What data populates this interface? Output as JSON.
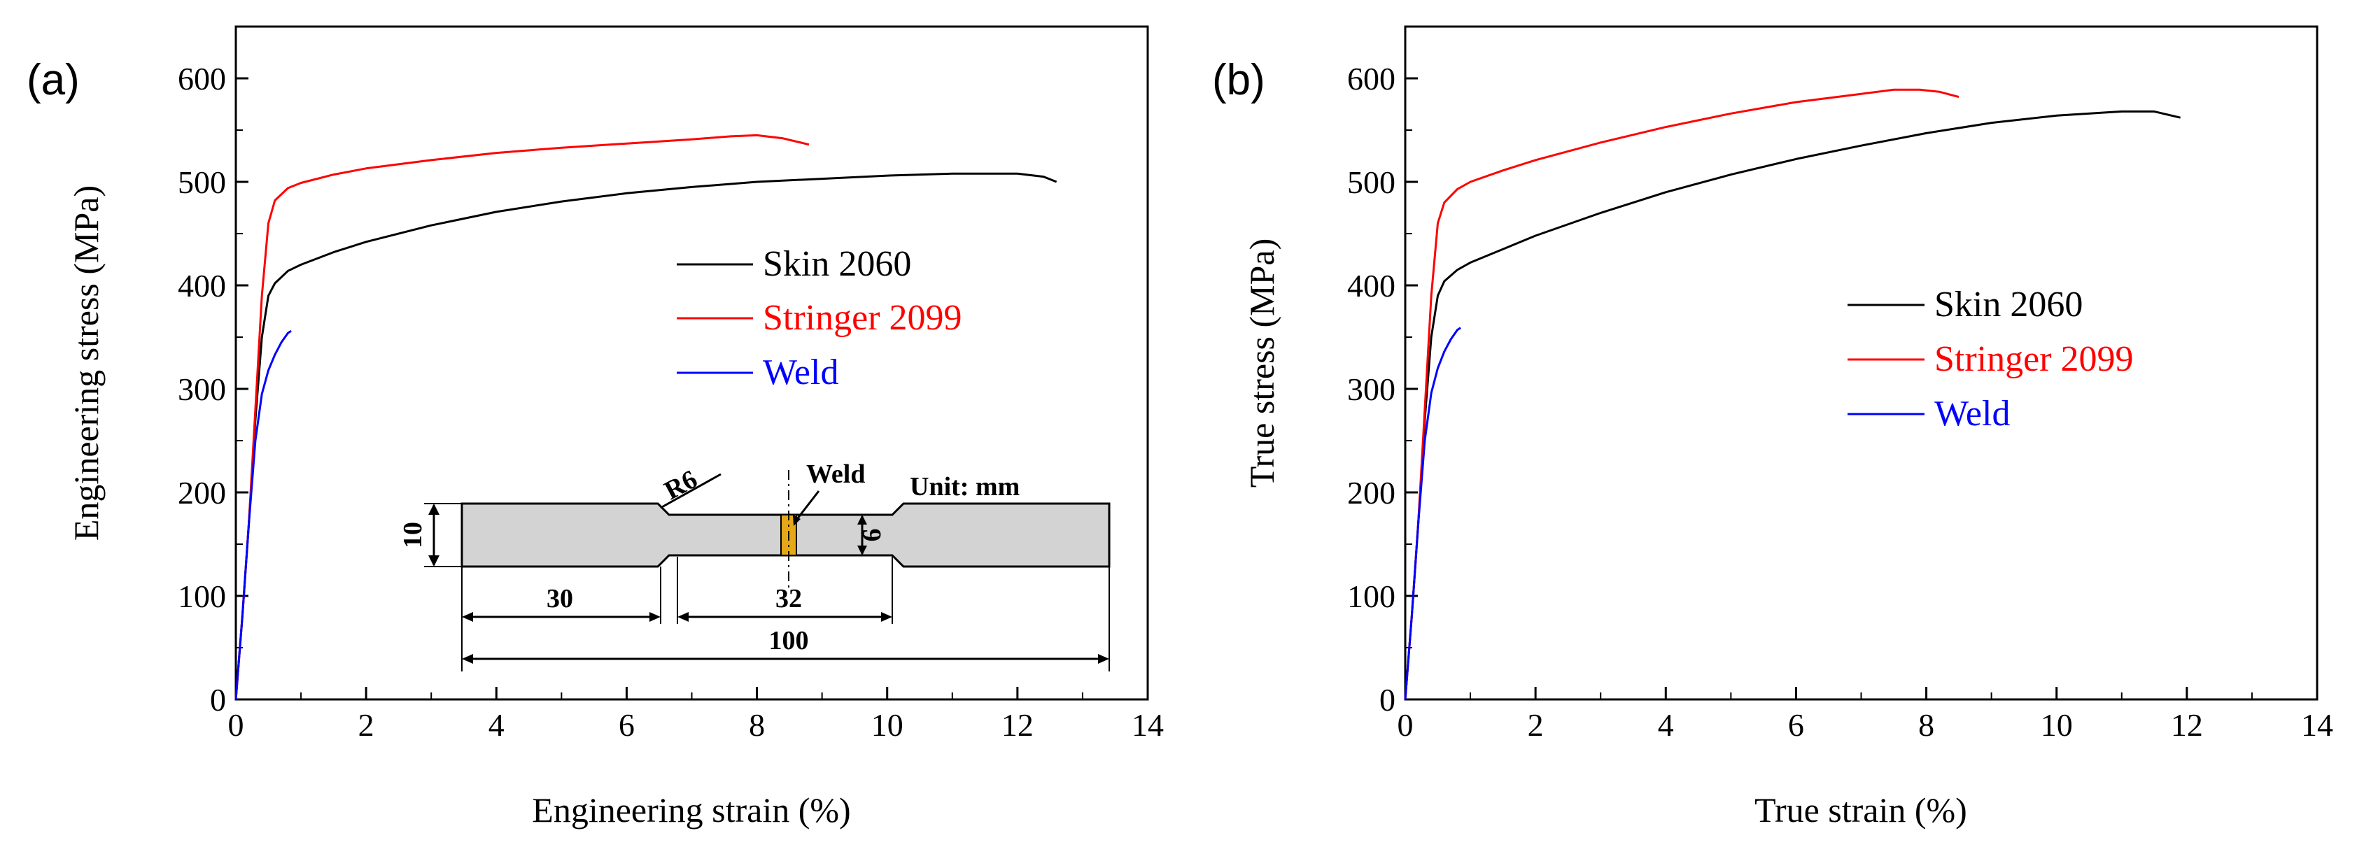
{
  "colors": {
    "skin": "#000000",
    "stringer": "#ff0000",
    "weld": "#0000ff",
    "specimen": "#d3d3d3",
    "weld_zone": "#e6a817"
  },
  "chart_data": [
    {
      "type": "line",
      "panel_label": "(a)",
      "xlabel": "Engineering strain (%)",
      "ylabel": "Engineering stress (MPa)",
      "xlim": [
        0,
        14
      ],
      "ylim": [
        0,
        650
      ],
      "xticks": [
        0,
        2,
        4,
        6,
        8,
        10,
        12,
        14
      ],
      "yticks": [
        0,
        100,
        200,
        300,
        400,
        500,
        600
      ],
      "grid": false,
      "legend_position": "center-right",
      "series": [
        {
          "name": "Skin 2060",
          "color": "#000000",
          "x": [
            0,
            0.1,
            0.2,
            0.3,
            0.4,
            0.5,
            0.6,
            0.8,
            1.0,
            1.5,
            2,
            3,
            4,
            5,
            6,
            7,
            8,
            9,
            10,
            11,
            12,
            12.4,
            12.6
          ],
          "y": [
            0,
            80,
            170,
            270,
            350,
            390,
            402,
            414,
            420,
            432,
            442,
            458,
            471,
            481,
            489,
            495,
            500,
            503,
            506,
            508,
            508,
            505,
            500
          ]
        },
        {
          "name": "Stringer 2099",
          "color": "#ff0000",
          "x": [
            0,
            0.1,
            0.2,
            0.3,
            0.4,
            0.5,
            0.6,
            0.8,
            1.0,
            1.5,
            2,
            3,
            4,
            5,
            6,
            7,
            7.6,
            8.0,
            8.4,
            8.8
          ],
          "y": [
            0,
            80,
            170,
            280,
            390,
            460,
            482,
            494,
            499,
            507,
            513,
            521,
            528,
            533,
            537,
            541,
            544,
            545,
            542,
            536
          ]
        },
        {
          "name": "Weld",
          "color": "#0000ff",
          "x": [
            0,
            0.1,
            0.2,
            0.3,
            0.4,
            0.5,
            0.6,
            0.7,
            0.8,
            0.85
          ],
          "y": [
            0,
            80,
            170,
            250,
            295,
            318,
            333,
            345,
            354,
            356
          ]
        }
      ],
      "inset": {
        "unit_label": "Unit: mm",
        "radius_label": "R6",
        "weld_label": "Weld",
        "dim_width_end": "10",
        "dim_width_gauge": "6",
        "dim_grip": "30",
        "dim_gauge": "32",
        "dim_total": "100"
      }
    },
    {
      "type": "line",
      "panel_label": "(b)",
      "xlabel": "True strain (%)",
      "ylabel": "True stress (MPa)",
      "xlim": [
        0,
        14
      ],
      "ylim": [
        0,
        650
      ],
      "xticks": [
        0,
        2,
        4,
        6,
        8,
        10,
        12,
        14
      ],
      "yticks": [
        0,
        100,
        200,
        300,
        400,
        500,
        600
      ],
      "grid": false,
      "legend_position": "center-right",
      "series": [
        {
          "name": "Skin 2060",
          "color": "#000000",
          "x": [
            0,
            0.1,
            0.2,
            0.3,
            0.4,
            0.5,
            0.6,
            0.8,
            1.0,
            1.5,
            2,
            3,
            4,
            5,
            6,
            7,
            8,
            9,
            10,
            11,
            11.5,
            11.9
          ],
          "y": [
            0,
            80,
            170,
            270,
            350,
            390,
            404,
            415,
            422,
            435,
            448,
            470,
            490,
            507,
            522,
            535,
            547,
            557,
            564,
            568,
            568,
            562
          ]
        },
        {
          "name": "Stringer 2099",
          "color": "#ff0000",
          "x": [
            0,
            0.1,
            0.2,
            0.3,
            0.4,
            0.5,
            0.6,
            0.8,
            1.0,
            1.5,
            2,
            3,
            4,
            5,
            6,
            7,
            7.5,
            7.9,
            8.2,
            8.5
          ],
          "y": [
            0,
            80,
            170,
            280,
            390,
            460,
            480,
            493,
            500,
            511,
            521,
            538,
            553,
            566,
            577,
            585,
            589,
            589,
            587,
            582
          ]
        },
        {
          "name": "Weld",
          "color": "#0000ff",
          "x": [
            0,
            0.1,
            0.2,
            0.3,
            0.4,
            0.5,
            0.6,
            0.7,
            0.8,
            0.85
          ],
          "y": [
            0,
            80,
            170,
            250,
            296,
            320,
            336,
            348,
            357,
            359
          ]
        }
      ]
    }
  ]
}
